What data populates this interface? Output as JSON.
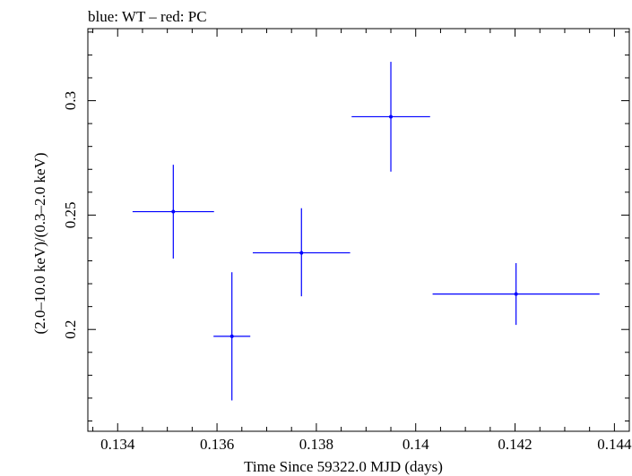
{
  "chart_data": {
    "type": "scatter",
    "title": "blue: WT – red: PC",
    "xlabel": "Time Since 59322.0 MJD (days)",
    "ylabel": "(2.0–10.0 keV)/(0.3–2.0 keV)",
    "xlim": [
      0.1334,
      0.1443
    ],
    "ylim": [
      0.1555,
      0.3315
    ],
    "x_ticks": [
      0.134,
      0.136,
      0.138,
      0.14,
      0.142,
      0.144
    ],
    "x_tick_labels": [
      "0.134",
      "0.136",
      "0.138",
      "0.14",
      "0.142",
      "0.144"
    ],
    "y_ticks": [
      0.2,
      0.25,
      0.3
    ],
    "y_tick_labels": [
      "0.2",
      "0.25",
      "0.3"
    ],
    "grid": false,
    "series": [
      {
        "color": "#0000ff",
        "points": [
          {
            "x": 0.13512,
            "y": 0.2515,
            "xerr": 0.00082,
            "yerr_low": 0.0205,
            "yerr_high": 0.0205
          },
          {
            "x": 0.1363,
            "y": 0.197,
            "xerr": 0.00037,
            "yerr_low": 0.028,
            "yerr_high": 0.028
          },
          {
            "x": 0.1377,
            "y": 0.2335,
            "xerr": 0.00098,
            "yerr_low": 0.019,
            "yerr_high": 0.0195
          },
          {
            "x": 0.1395,
            "y": 0.293,
            "xerr": 0.00079,
            "yerr_low": 0.024,
            "yerr_high": 0.024
          },
          {
            "x": 0.14202,
            "y": 0.2155,
            "xerr": 0.00168,
            "yerr_low": 0.0135,
            "yerr_high": 0.0135
          }
        ]
      }
    ]
  }
}
